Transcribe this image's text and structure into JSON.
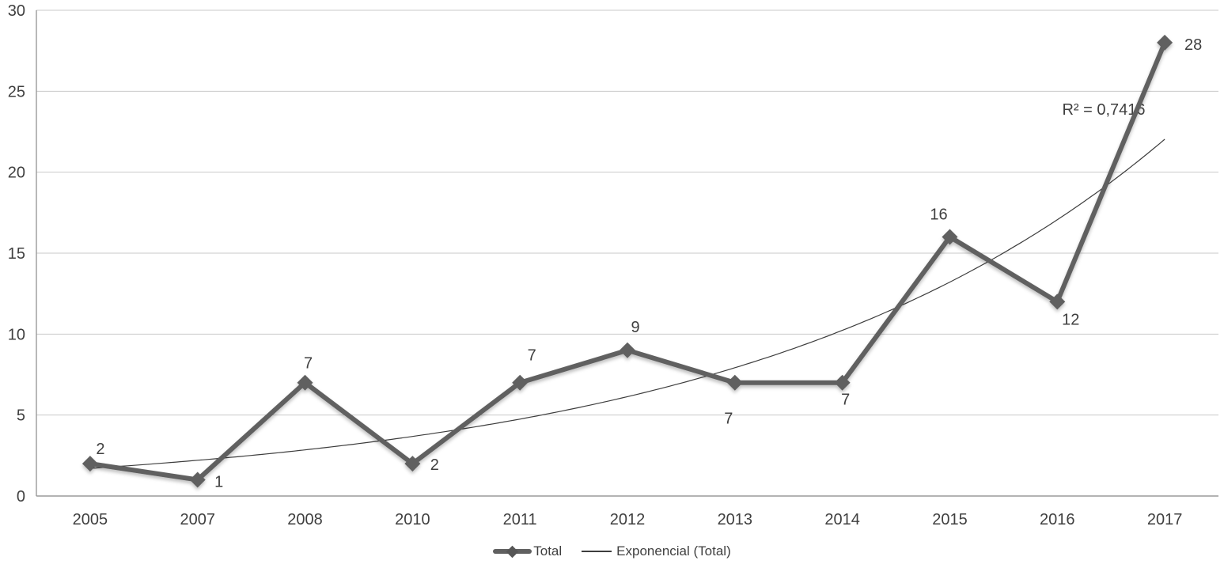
{
  "colors": {
    "background": "#ffffff",
    "text": "#3f3f3f",
    "gridline": "#c9c9c9",
    "axis": "#9a9a9a",
    "series": "#606060",
    "trendline": "#3d3d3d"
  },
  "chart_data": {
    "type": "line",
    "title": "",
    "xlabel": "",
    "ylabel": "",
    "categories": [
      "2005",
      "2007",
      "2008",
      "2010",
      "2011",
      "2012",
      "2013",
      "2014",
      "2015",
      "2016",
      "2017"
    ],
    "series": [
      {
        "name": "Total",
        "values": [
          2,
          1,
          7,
          2,
          7,
          9,
          7,
          7,
          16,
          12,
          28
        ],
        "labels": [
          "2",
          "1",
          "7",
          "2",
          "7",
          "9",
          "7",
          "7",
          "16",
          "12",
          "28"
        ],
        "label_offsets": [
          [
            13,
            -18
          ],
          [
            27,
            3
          ],
          [
            4,
            -24
          ],
          [
            28,
            2
          ],
          [
            15,
            -34
          ],
          [
            10,
            -29
          ],
          [
            -8,
            46
          ],
          [
            4,
            22
          ],
          [
            -14,
            -28
          ],
          [
            17,
            23
          ],
          [
            36,
            3
          ]
        ],
        "marker": "diamond",
        "color": "#606060"
      }
    ],
    "trendline": {
      "name": "Exponencial (Total)",
      "type": "exponential",
      "equation": {
        "a": 1.323,
        "k": 0.2557
      },
      "values": [
        1.71,
        2.21,
        2.85,
        3.68,
        4.75,
        6.14,
        7.92,
        10.23,
        13.21,
        17.06,
        22.03
      ],
      "color": "#3d3d3d",
      "r2_label": "R² = 0,7416",
      "r2_pos": {
        "x": 1395,
        "y": 139
      }
    },
    "ylim": [
      0,
      30
    ],
    "yticks": [
      0,
      5,
      10,
      15,
      20,
      25,
      30
    ],
    "grid": true,
    "legend_position": "bottom"
  }
}
